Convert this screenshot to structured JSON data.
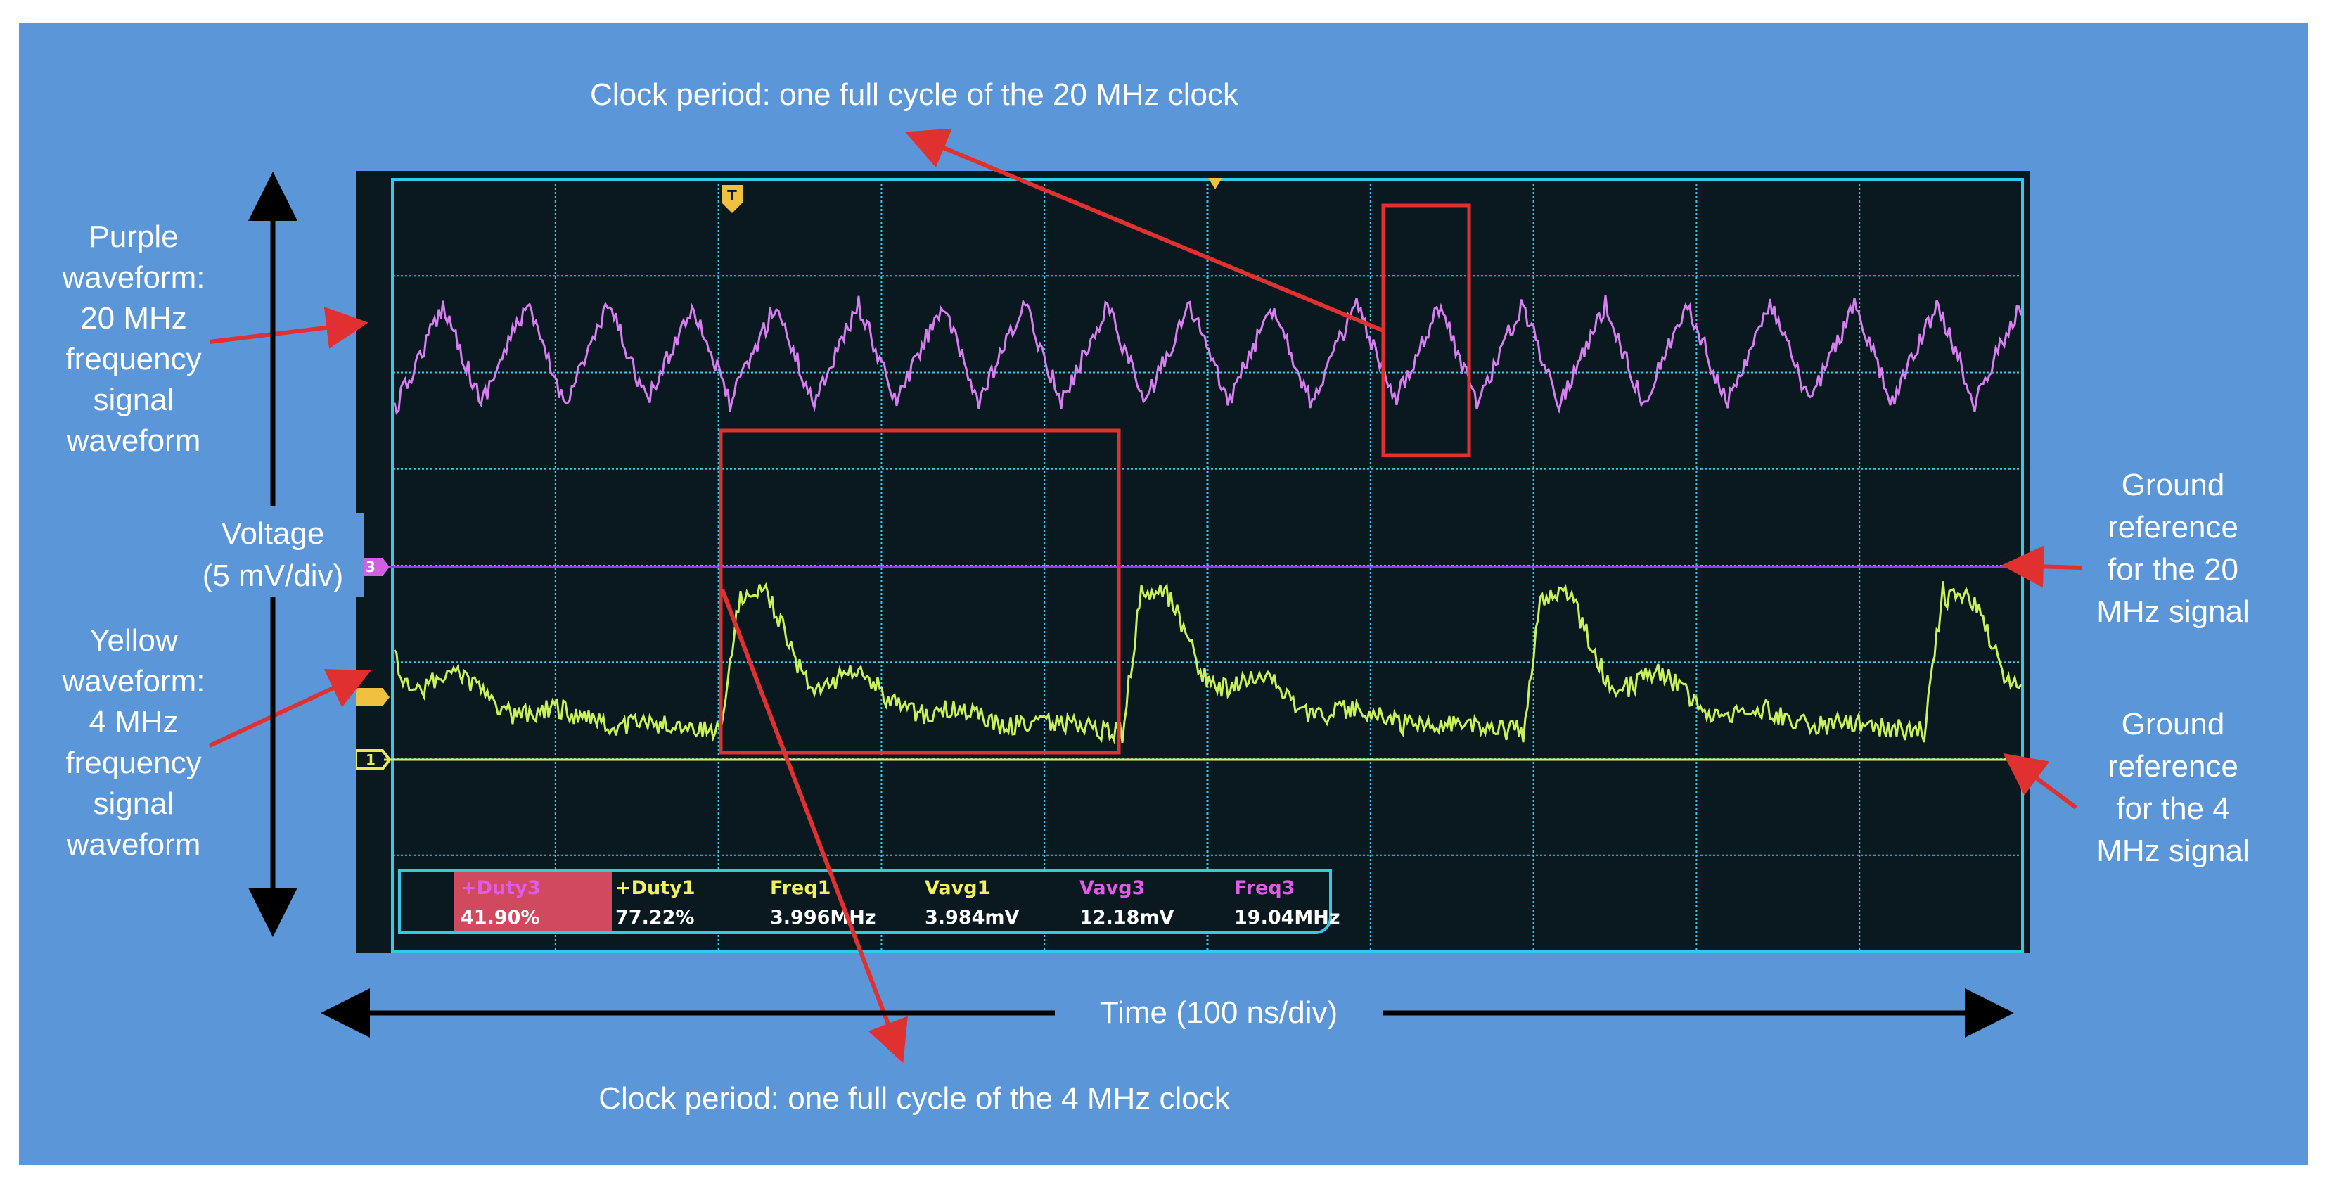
{
  "labels": {
    "top_annotation": "Clock period: one full cycle of the 20 MHz clock",
    "bottom_annotation": "Clock period: one full cycle of the 4 MHz clock",
    "purple_label": [
      "Purple",
      "waveform:",
      "20 MHz",
      "frequency",
      "signal",
      "waveform"
    ],
    "yellow_label": [
      "Yellow",
      "waveform:",
      "4 MHz",
      "frequency",
      "signal",
      "waveform"
    ],
    "voltage_label": [
      "Voltage",
      "(5 mV/div)"
    ],
    "time_label": "Time (100 ns/div)",
    "ground_20": [
      "Ground",
      "reference",
      "for the 20",
      "MHz signal"
    ],
    "ground_4": [
      "Ground",
      "reference",
      "for the 4",
      "MHz signal"
    ]
  },
  "measurements": [
    {
      "name": "+Duty3",
      "value": "41.90%",
      "color": "#e05ce6",
      "highlight": true
    },
    {
      "name": "+Duty1",
      "value": "77.22%",
      "color": "#f0f060",
      "highlight": false
    },
    {
      "name": "Freq1",
      "value": "3.996MHz",
      "color": "#f0f060",
      "highlight": false
    },
    {
      "name": "Vavg1",
      "value": "3.984mV",
      "color": "#f0f060",
      "highlight": false
    },
    {
      "name": "Vavg3",
      "value": "12.18mV",
      "color": "#e05ce6",
      "highlight": false
    },
    {
      "name": "Freq3",
      "value": "19.04MHz",
      "color": "#e05ce6",
      "highlight": false
    }
  ],
  "channel_markers": {
    "ch3": "3",
    "ch1": "1",
    "trigger": "T"
  },
  "colors": {
    "background_panel": "#5b97d8",
    "purple_trace": "#d77ef0",
    "yellow_trace": "#c9f25a",
    "annotation_red": "#e03030",
    "grid": "#35c9e3"
  }
}
